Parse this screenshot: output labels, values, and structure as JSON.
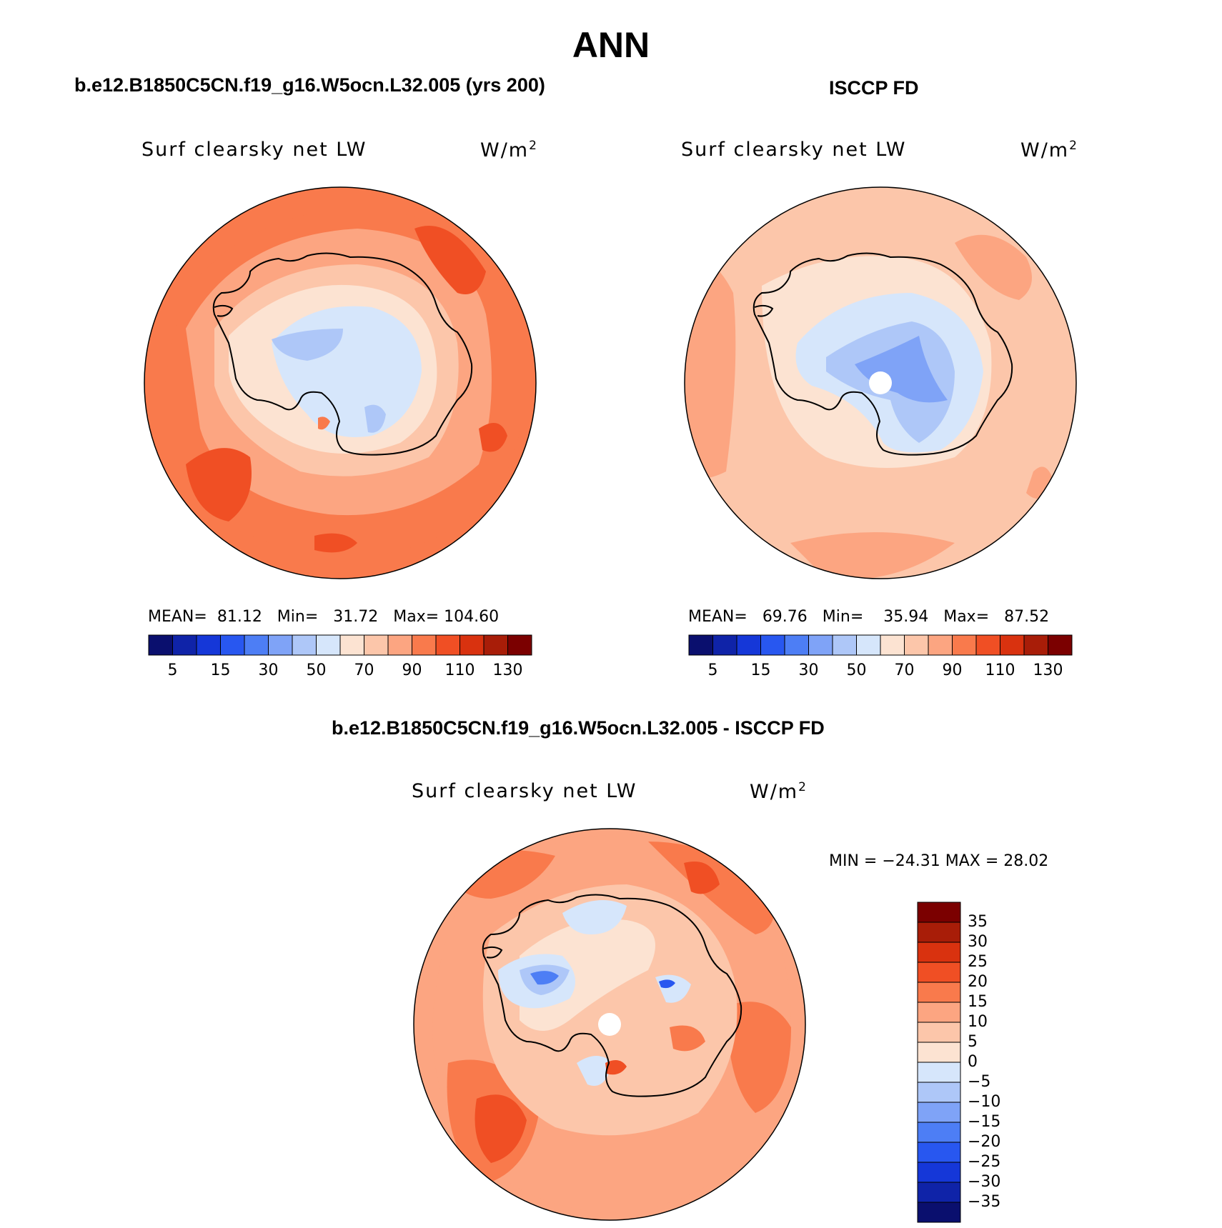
{
  "title": "ANN",
  "panels": {
    "model": {
      "heading": "b.e12.B1850C5CN.f19_g16.W5ocn.L32.005 (yrs 200)",
      "variable": "Surf clearsky net LW",
      "units": "W/m",
      "units_exp": "2",
      "stats": {
        "mean_label": "MEAN=",
        "mean": "81.12",
        "min_label": "Min=",
        "min": "31.72",
        "max_label": "Max=",
        "max": "104.60"
      }
    },
    "obs": {
      "heading": "ISCCP FD",
      "variable": "Surf clearsky net LW",
      "units": "W/m",
      "units_exp": "2",
      "stats": {
        "mean_label": "MEAN=",
        "mean": "69.76",
        "min_label": "Min=",
        "min": "35.94",
        "max_label": "Max=",
        "max": "87.52"
      }
    },
    "diff": {
      "heading": "b.e12.B1850C5CN.f19_g16.W5ocn.L32.005 - ISCCP FD",
      "variable": "Surf clearsky net LW",
      "units": "W/m",
      "units_exp": "2",
      "minmax": "MIN = −24.31 MAX =  28.02"
    }
  },
  "colorbar_abs": {
    "labels": [
      "5",
      "15",
      "30",
      "50",
      "70",
      "90",
      "110",
      "130"
    ],
    "colors": [
      "#0a0f6e",
      "#0f23a8",
      "#1537d8",
      "#2857f0",
      "#4d7ef5",
      "#7fa3f7",
      "#aec7f8",
      "#d6e6fb",
      "#fce3d2",
      "#fcc6aa",
      "#fca581",
      "#f97a4c",
      "#f04f24",
      "#d9320f",
      "#a81d08",
      "#7b0000"
    ]
  },
  "colorbar_diff": {
    "labels": [
      "35",
      "30",
      "25",
      "20",
      "15",
      "10",
      "5",
      "0",
      "−5",
      "−10",
      "−15",
      "−20",
      "−25",
      "−30",
      "−35"
    ],
    "colors": [
      "#7b0000",
      "#a81d08",
      "#d9320f",
      "#f04f24",
      "#f97a4c",
      "#fca581",
      "#fcc6aa",
      "#fce3d2",
      "#d6e6fb",
      "#aec7f8",
      "#7fa3f7",
      "#4d7ef5",
      "#2857f0",
      "#1537d8",
      "#0f23a8",
      "#0a0f6e"
    ]
  }
}
